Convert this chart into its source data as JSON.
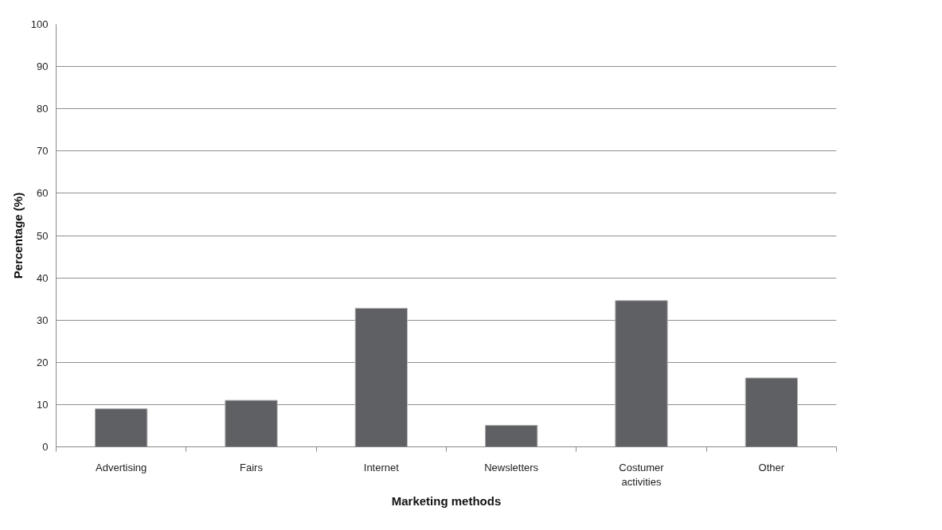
{
  "chart_data": {
    "type": "bar",
    "xlabel": "Marketing methods",
    "ylabel": "Percentage (%)",
    "categories": [
      "Advertising",
      "Fairs",
      "Internet",
      "Newsletters",
      "Costumer activities",
      "Other"
    ],
    "values": [
      9,
      11,
      32.8,
      5.1,
      34.6,
      16.3
    ],
    "color": "#5f6064",
    "ylim": [
      0,
      100
    ],
    "yticks": [
      0,
      10,
      20,
      30,
      40,
      50,
      60,
      70,
      80,
      90,
      100
    ],
    "grid": "y"
  }
}
